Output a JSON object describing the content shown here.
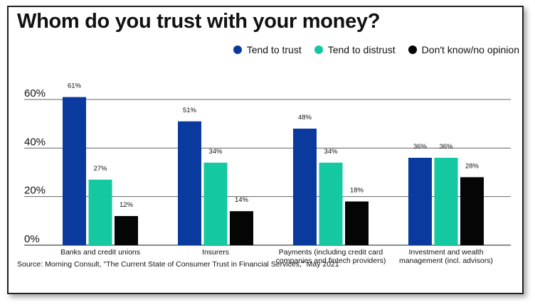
{
  "chart_data": {
    "type": "bar",
    "title": "Whom do you trust with your money?",
    "categories": [
      "Banks and credit unions",
      "Insurers",
      "Payments (including credit card companies and fintech providers)",
      "Investment and wealth management (incl. advisors)"
    ],
    "category_lines": [
      [
        "Banks and credit unions"
      ],
      [
        "Insurers"
      ],
      [
        "Payments (including credit card",
        "companies and fintech providers)"
      ],
      [
        "Investment and wealth",
        "management (incl. advisors)"
      ]
    ],
    "series": [
      {
        "name": "Tend to trust",
        "color": "#0a3a9e",
        "values": [
          61,
          51,
          48,
          36
        ]
      },
      {
        "name": "Tend to distrust",
        "color": "#14c9a1",
        "values": [
          27,
          34,
          34,
          36
        ]
      },
      {
        "name": "Don't know/no opinion",
        "color": "#050505",
        "values": [
          12,
          14,
          18,
          28
        ]
      }
    ],
    "data_label_suffix": "%",
    "yticks": [
      0,
      20,
      40,
      60
    ],
    "ytick_labels": [
      "0%",
      "20%",
      "40%",
      "60%"
    ],
    "ylim": [
      0,
      62
    ],
    "grid": true,
    "legend_position": "top-right",
    "xlabel": "",
    "ylabel": "",
    "source": "Source: Morning Consult, \"The Current State of Consumer Trust in Financial Services,\" May 2021"
  }
}
